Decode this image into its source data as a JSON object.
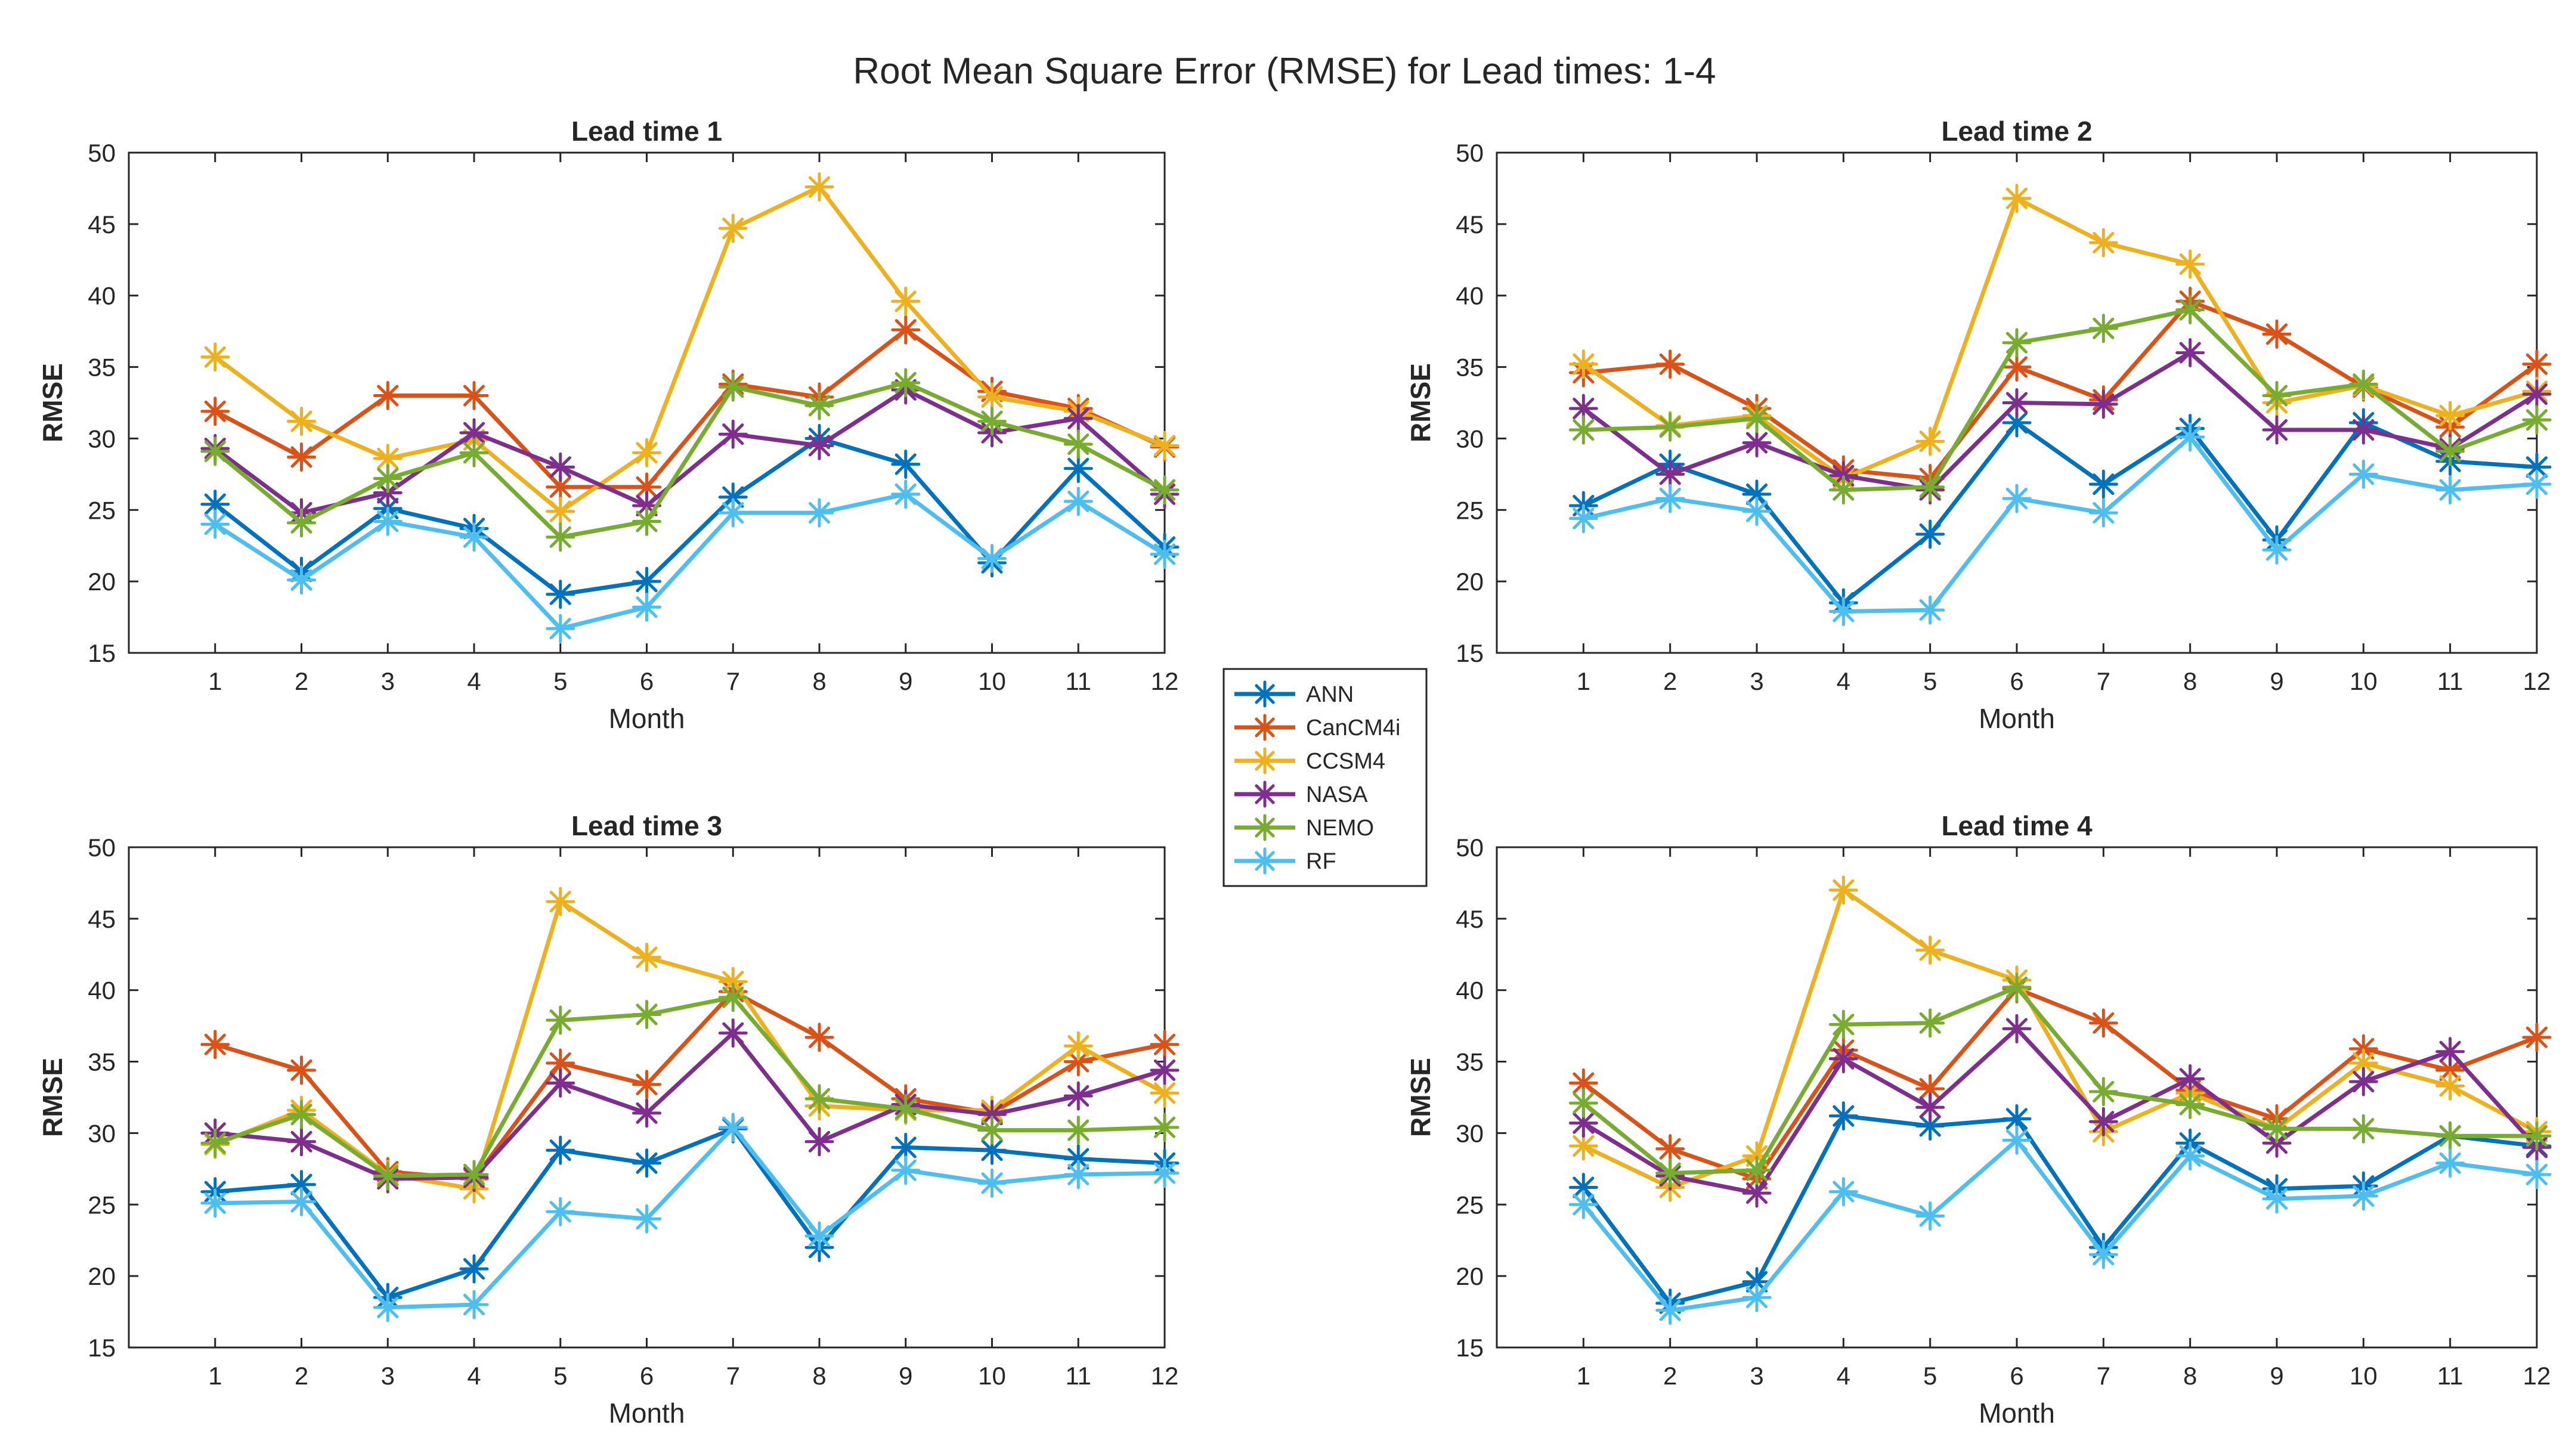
{
  "chart_data": {
    "type": "line",
    "title": "Root Mean Square Error (RMSE)  for Lead times: 1-4",
    "legend": {
      "placement": "center",
      "entries": [
        {
          "name": "ANN",
          "color": "#0072BD"
        },
        {
          "name": "CanCM4i",
          "color": "#D95319"
        },
        {
          "name": "CCSM4",
          "color": "#EDB120"
        },
        {
          "name": "NASA",
          "color": "#7E2F8E"
        },
        {
          "name": "NEMO",
          "color": "#77AC30"
        },
        {
          "name": "RF",
          "color": "#4DBEEE"
        }
      ]
    },
    "panels": [
      {
        "title": "Lead time 1",
        "xlabel": "Month",
        "ylabel": "RMSE",
        "xlim": [
          0,
          12
        ],
        "ylim": [
          15,
          50
        ],
        "x": [
          1,
          2,
          3,
          4,
          5,
          6,
          7,
          8,
          9,
          10,
          11,
          12
        ],
        "xticks": [
          "1",
          "2",
          "3",
          "4",
          "5",
          "6",
          "7",
          "8",
          "9",
          "10",
          "11",
          "12"
        ],
        "yticks": [
          "15",
          "20",
          "25",
          "30",
          "35",
          "40",
          "45",
          "50"
        ],
        "series": [
          {
            "name": "ANN",
            "values": [
              25.4,
              20.7,
              25.1,
              23.7,
              19.1,
              20.0,
              25.9,
              30.0,
              28.2,
              21.3,
              27.9,
              22.4
            ]
          },
          {
            "name": "CanCM4i",
            "values": [
              31.9,
              28.7,
              33.0,
              33.0,
              26.6,
              26.6,
              33.8,
              32.9,
              37.6,
              33.3,
              32.1,
              29.4
            ]
          },
          {
            "name": "CCSM4",
            "values": [
              35.7,
              31.2,
              28.6,
              29.9,
              24.9,
              29.0,
              44.7,
              47.6,
              39.6,
              32.9,
              31.9,
              29.5
            ]
          },
          {
            "name": "NASA",
            "values": [
              29.3,
              24.8,
              26.2,
              30.4,
              28.0,
              25.3,
              30.3,
              29.5,
              33.4,
              30.4,
              31.4,
              26.1
            ]
          },
          {
            "name": "NEMO",
            "values": [
              29.1,
              24.1,
              27.2,
              29.0,
              23.1,
              24.2,
              33.6,
              32.3,
              33.9,
              31.2,
              29.6,
              26.4
            ]
          },
          {
            "name": "RF",
            "values": [
              24.0,
              20.1,
              24.2,
              23.1,
              16.7,
              18.2,
              24.8,
              24.8,
              26.1,
              21.6,
              25.6,
              21.9
            ]
          }
        ]
      },
      {
        "title": "Lead time 2",
        "xlabel": "Month",
        "ylabel": "RMSE",
        "xlim": [
          0,
          12
        ],
        "ylim": [
          15,
          50
        ],
        "x": [
          1,
          2,
          3,
          4,
          5,
          6,
          7,
          8,
          9,
          10,
          11,
          12
        ],
        "xticks": [
          "1",
          "2",
          "3",
          "4",
          "5",
          "6",
          "7",
          "8",
          "9",
          "10",
          "11",
          "12"
        ],
        "yticks": [
          "15",
          "20",
          "25",
          "30",
          "35",
          "40",
          "45",
          "50"
        ],
        "series": [
          {
            "name": "ANN",
            "values": [
              25.3,
              28.2,
              26.1,
              18.5,
              23.3,
              31.1,
              26.8,
              30.7,
              22.9,
              31.1,
              28.4,
              28.0
            ]
          },
          {
            "name": "CanCM4i",
            "values": [
              34.6,
              35.2,
              32.1,
              27.8,
              27.2,
              35.0,
              32.7,
              39.6,
              37.3,
              33.6,
              30.8,
              35.2
            ]
          },
          {
            "name": "CCSM4",
            "values": [
              35.2,
              30.9,
              31.6,
              27.2,
              29.8,
              46.8,
              43.7,
              42.2,
              32.5,
              33.7,
              31.6,
              33.3
            ]
          },
          {
            "name": "NASA",
            "values": [
              32.1,
              27.5,
              29.7,
              27.4,
              26.4,
              32.5,
              32.4,
              36.0,
              30.6,
              30.6,
              29.3,
              33.1
            ]
          },
          {
            "name": "NEMO",
            "values": [
              30.6,
              30.8,
              31.4,
              26.4,
              26.6,
              36.7,
              37.7,
              39.0,
              33.0,
              33.8,
              29.1,
              31.3
            ]
          },
          {
            "name": "RF",
            "values": [
              24.4,
              25.8,
              24.9,
              17.9,
              18.0,
              25.8,
              24.8,
              30.1,
              22.2,
              27.5,
              26.4,
              26.8
            ]
          }
        ]
      },
      {
        "title": "Lead time 3",
        "xlabel": "Month",
        "ylabel": "RMSE",
        "xlim": [
          0,
          12
        ],
        "ylim": [
          15,
          50
        ],
        "x": [
          1,
          2,
          3,
          4,
          5,
          6,
          7,
          8,
          9,
          10,
          11,
          12
        ],
        "xticks": [
          "1",
          "2",
          "3",
          "4",
          "5",
          "6",
          "7",
          "8",
          "9",
          "10",
          "11",
          "12"
        ],
        "yticks": [
          "15",
          "20",
          "25",
          "30",
          "35",
          "40",
          "45",
          "50"
        ],
        "series": [
          {
            "name": "ANN",
            "values": [
              25.9,
              26.4,
              18.5,
              20.5,
              28.8,
              27.9,
              30.3,
              22.0,
              29.0,
              28.8,
              28.2,
              27.9
            ]
          },
          {
            "name": "CanCM4i",
            "values": [
              36.2,
              34.4,
              27.3,
              26.8,
              34.9,
              33.4,
              39.9,
              36.7,
              32.4,
              31.4,
              35.0,
              36.2
            ]
          },
          {
            "name": "CCSM4",
            "values": [
              29.2,
              31.6,
              27.1,
              26.1,
              46.2,
              42.3,
              40.6,
              31.9,
              31.6,
              31.6,
              36.1,
              32.8
            ]
          },
          {
            "name": "NASA",
            "values": [
              30.0,
              29.4,
              26.8,
              26.9,
              33.5,
              31.4,
              37.0,
              29.4,
              32.0,
              31.3,
              32.6,
              34.4
            ]
          },
          {
            "name": "NEMO",
            "values": [
              29.3,
              31.3,
              27.0,
              27.1,
              37.9,
              38.3,
              39.5,
              32.4,
              31.7,
              30.2,
              30.2,
              30.4
            ]
          },
          {
            "name": "RF",
            "values": [
              25.1,
              25.2,
              17.8,
              18.0,
              24.5,
              24.0,
              30.4,
              22.8,
              27.4,
              26.5,
              27.1,
              27.2
            ]
          }
        ]
      },
      {
        "title": "Lead time 4",
        "xlabel": "Month",
        "ylabel": "RMSE",
        "xlim": [
          0,
          12
        ],
        "ylim": [
          15,
          50
        ],
        "x": [
          1,
          2,
          3,
          4,
          5,
          6,
          7,
          8,
          9,
          10,
          11,
          12
        ],
        "xticks": [
          "1",
          "2",
          "3",
          "4",
          "5",
          "6",
          "7",
          "8",
          "9",
          "10",
          "11",
          "12"
        ],
        "yticks": [
          "15",
          "20",
          "25",
          "30",
          "35",
          "40",
          "45",
          "50"
        ],
        "series": [
          {
            "name": "ANN",
            "values": [
              26.2,
              18.1,
              19.6,
              31.2,
              30.5,
              31.0,
              22.0,
              29.3,
              26.1,
              26.3,
              29.8,
              29.1
            ]
          },
          {
            "name": "CanCM4i",
            "values": [
              33.5,
              28.9,
              26.8,
              35.8,
              33.1,
              40.1,
              37.7,
              33.0,
              31.0,
              35.9,
              34.4,
              36.7
            ]
          },
          {
            "name": "CCSM4",
            "values": [
              29.1,
              26.2,
              28.4,
              47.0,
              42.8,
              40.7,
              30.1,
              32.8,
              30.3,
              34.9,
              33.3,
              30.1
            ]
          },
          {
            "name": "NASA",
            "values": [
              30.7,
              27.0,
              25.8,
              35.2,
              31.8,
              37.3,
              30.8,
              33.8,
              29.3,
              33.6,
              35.7,
              29.0
            ]
          },
          {
            "name": "NEMO",
            "values": [
              32.1,
              27.2,
              27.4,
              37.6,
              37.7,
              40.2,
              32.9,
              32.0,
              30.3,
              30.3,
              29.8,
              29.8
            ]
          },
          {
            "name": "RF",
            "values": [
              25.0,
              17.6,
              18.5,
              25.9,
              24.2,
              29.5,
              21.5,
              28.4,
              25.4,
              25.6,
              27.9,
              27.1
            ]
          }
        ]
      }
    ]
  }
}
